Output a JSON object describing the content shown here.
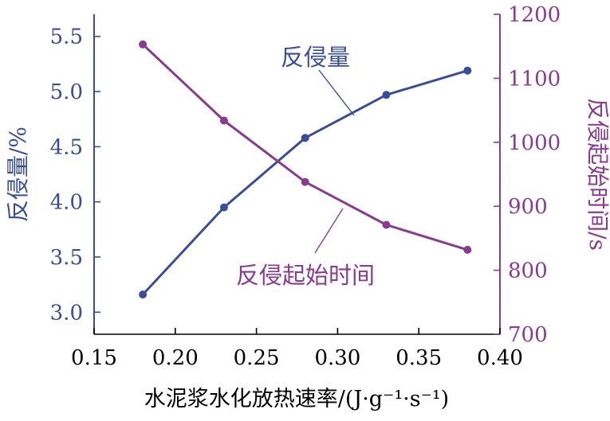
{
  "chart_data": {
    "type": "line",
    "xlabel": "水泥浆水化放热速率/(J·g⁻¹·s⁻¹)",
    "xlim": [
      0.15,
      0.4
    ],
    "xticks": [
      "0.15",
      "0.20",
      "0.25",
      "0.30",
      "0.35",
      "0.40"
    ],
    "y_left": {
      "label": "反侵量/%",
      "lim": [
        2.8,
        5.7
      ],
      "ticks": [
        "3.0",
        "3.5",
        "4.0",
        "4.5",
        "5.0",
        "5.5"
      ],
      "color": "#3a4d99"
    },
    "y_right": {
      "label": "反侵起始时间/s",
      "lim": [
        700,
        1200
      ],
      "ticks": [
        "700",
        "800",
        "900",
        "1000",
        "1100",
        "1200"
      ],
      "color": "#8a3a8f"
    },
    "x": [
      0.18,
      0.23,
      0.28,
      0.33,
      0.38
    ],
    "series": [
      {
        "name": "反侵量",
        "axis": "left",
        "color": "#3a4d99",
        "values": [
          3.16,
          3.95,
          4.58,
          4.97,
          5.19
        ]
      },
      {
        "name": "反侵起始时间",
        "axis": "right",
        "color": "#8a3a8f",
        "values": [
          1153,
          1034,
          938,
          871,
          832
        ]
      }
    ],
    "grid": false,
    "legend": "inline annotations with leader lines"
  }
}
